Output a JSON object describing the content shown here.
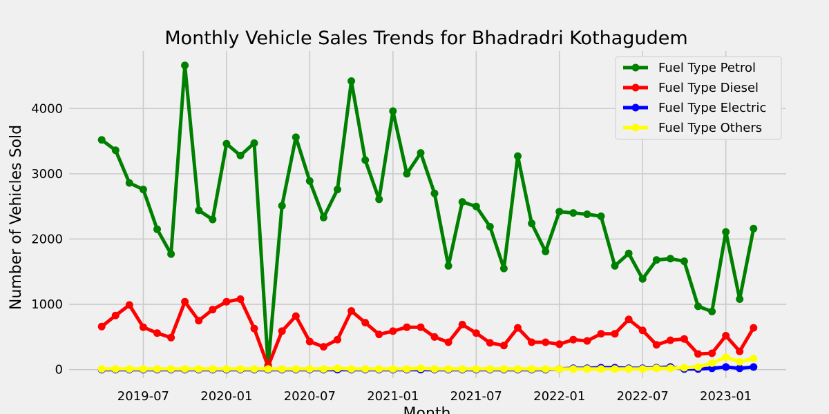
{
  "chart_data": {
    "type": "line",
    "title": "Monthly Vehicle Sales Trends for Bhadradri Kothagudem",
    "xlabel": "Month",
    "ylabel": "Number of Vehicles Sold",
    "x": [
      "2019-04",
      "2019-05",
      "2019-06",
      "2019-07",
      "2019-08",
      "2019-09",
      "2019-10",
      "2019-11",
      "2019-12",
      "2020-01",
      "2020-02",
      "2020-03",
      "2020-04",
      "2020-05",
      "2020-06",
      "2020-07",
      "2020-08",
      "2020-09",
      "2020-10",
      "2020-11",
      "2020-12",
      "2021-01",
      "2021-02",
      "2021-03",
      "2021-04",
      "2021-05",
      "2021-06",
      "2021-07",
      "2021-08",
      "2021-09",
      "2021-10",
      "2021-11",
      "2021-12",
      "2022-01",
      "2022-02",
      "2022-03",
      "2022-04",
      "2022-05",
      "2022-06",
      "2022-07",
      "2022-08",
      "2022-09",
      "2022-10",
      "2022-11",
      "2022-12",
      "2023-01",
      "2023-02",
      "2023-03"
    ],
    "x_ticks": [
      "2019-07",
      "2020-01",
      "2020-07",
      "2021-01",
      "2021-07",
      "2022-01",
      "2022-07",
      "2023-01"
    ],
    "y_ticks": [
      0,
      1000,
      2000,
      3000,
      4000
    ],
    "ylim": [
      -130,
      4880
    ],
    "grid": true,
    "legend_position": "top-right",
    "series": [
      {
        "name": "Fuel Type Petrol",
        "color": "#008000",
        "values": [
          3520,
          3360,
          2860,
          2760,
          2150,
          1770,
          4660,
          2440,
          2300,
          3460,
          3280,
          3470,
          70,
          2510,
          3560,
          2890,
          2330,
          2760,
          4420,
          3210,
          2610,
          3960,
          3000,
          3320,
          2700,
          1590,
          2570,
          2500,
          2190,
          1550,
          3270,
          2240,
          1810,
          2420,
          2400,
          2380,
          2350,
          1590,
          1780,
          1390,
          1680,
          1700,
          1660,
          970,
          890,
          2110,
          1080,
          2160
        ]
      },
      {
        "name": "Fuel Type Diesel",
        "color": "#ff0000",
        "values": [
          660,
          830,
          990,
          650,
          560,
          490,
          1040,
          750,
          920,
          1040,
          1080,
          630,
          50,
          590,
          820,
          430,
          350,
          460,
          900,
          720,
          540,
          590,
          650,
          650,
          500,
          420,
          690,
          560,
          410,
          370,
          640,
          420,
          420,
          390,
          460,
          440,
          550,
          550,
          770,
          600,
          380,
          450,
          470,
          240,
          250,
          520,
          280,
          640
        ]
      },
      {
        "name": "Fuel Type Electric",
        "color": "#0000ff",
        "values": [
          0,
          0,
          0,
          0,
          0,
          0,
          0,
          0,
          0,
          0,
          0,
          0,
          0,
          0,
          0,
          0,
          0,
          0,
          0,
          0,
          0,
          0,
          0,
          0,
          0,
          0,
          0,
          0,
          0,
          0,
          0,
          0,
          0,
          10,
          20,
          20,
          30,
          30,
          20,
          20,
          30,
          40,
          10,
          10,
          20,
          40,
          20,
          40
        ]
      },
      {
        "name": "Fuel Type Others",
        "color": "#ffff00",
        "values": [
          10,
          10,
          10,
          10,
          10,
          10,
          10,
          10,
          10,
          10,
          10,
          10,
          10,
          10,
          10,
          10,
          10,
          20,
          10,
          10,
          10,
          10,
          10,
          20,
          10,
          10,
          10,
          10,
          10,
          10,
          10,
          10,
          10,
          10,
          10,
          10,
          10,
          10,
          10,
          10,
          20,
          20,
          30,
          40,
          100,
          190,
          120,
          170
        ]
      }
    ]
  }
}
